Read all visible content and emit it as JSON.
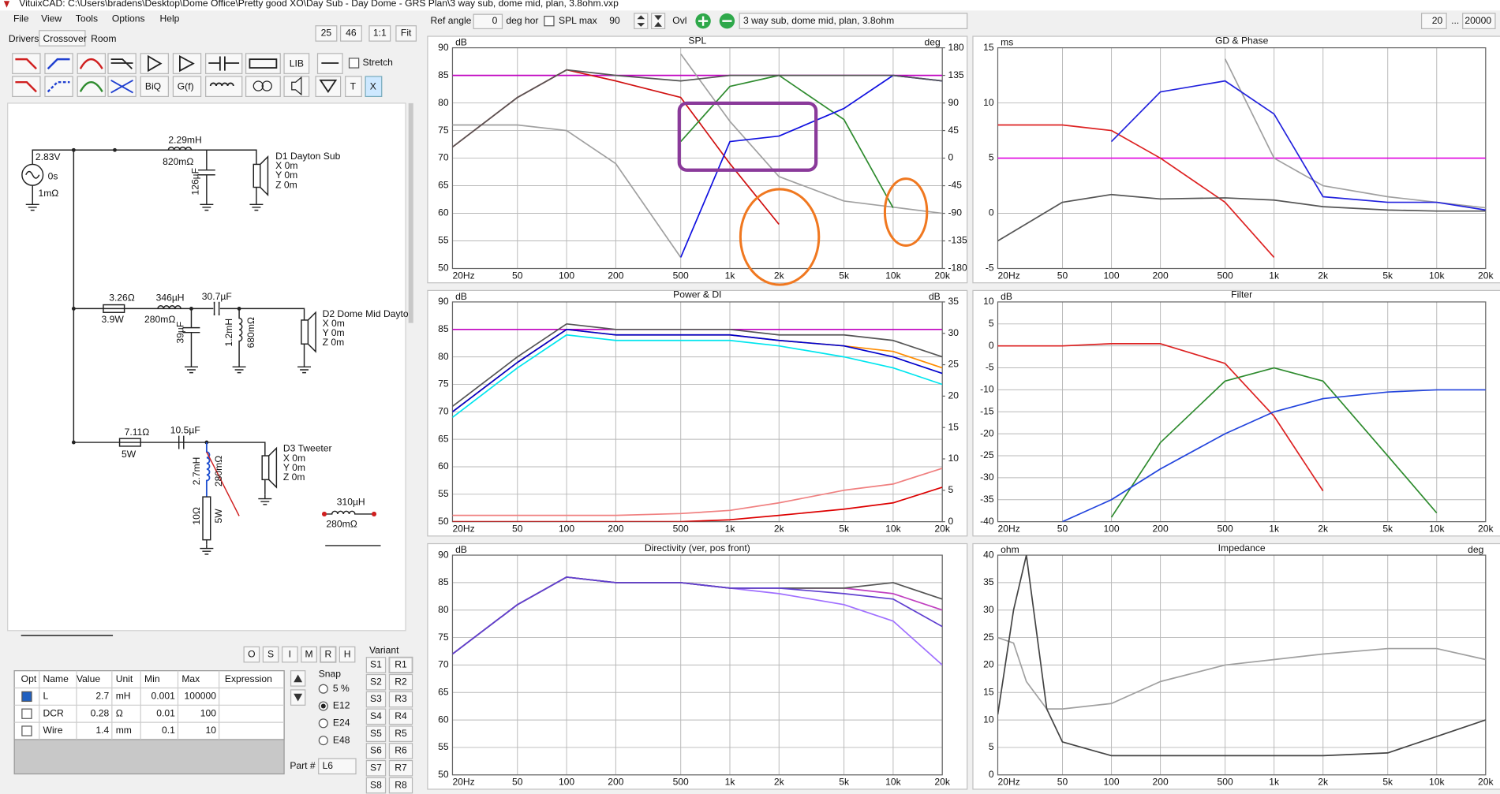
{
  "window_title": "VituixCAD: C:\\Users\\bradens\\Desktop\\Dome Office\\Pretty good XO\\Day Sub - Day Dome - GRS Plan\\3 way sub, dome mid, plan, 3.8ohm.vxp",
  "menu": [
    "File",
    "View",
    "Tools",
    "Options",
    "Help"
  ],
  "tabs": [
    "Drivers",
    "Crossover",
    "Room"
  ],
  "zoom": [
    "25",
    "46",
    "1:1",
    "Fit"
  ],
  "toolbar": {
    "ref_angle": "Ref angle",
    "angle": "0",
    "deg_hor": "deg hor",
    "spl_max": "SPL max",
    "spl_max_value": "90",
    "ovl": "Ovl",
    "description": "3 way sub, dome mid, plan, 3.8ohm",
    "f_min": "20",
    "dots": "...",
    "f_max": "20000"
  },
  "tools": [
    "LIB",
    "Stretch",
    "BiQ",
    "G(f)",
    "T",
    "X"
  ],
  "schematic": [
    "2.83V",
    "0s",
    "1mΩ",
    "2.29mH",
    "820mΩ",
    "126µF",
    "D1 Dayton Sub",
    "X 0m",
    "Y 0m",
    "Z 0m",
    "3.26Ω",
    "3.9W",
    "346µH",
    "280mΩ",
    "30.7µF",
    "39µF",
    "1.2mH",
    "680mΩ",
    "D2 Dome Mid Dayto",
    "X 0m",
    "Y 0m",
    "Z 0m",
    "7.11Ω",
    "5W",
    "10.5µF",
    "2.7mH",
    "280mΩ",
    "10Ω",
    "5W",
    "D3 Tweeter",
    "X 0m",
    "Y 0m",
    "Z 0m",
    "310µH",
    "280mΩ"
  ],
  "mode_buttons": [
    "O",
    "S",
    "I",
    "M",
    "R",
    "H"
  ],
  "parts": {
    "columns": [
      "Opt",
      "Name",
      "Value",
      "Unit",
      "Min",
      "Max",
      "Expression"
    ],
    "rows": [
      [
        "L",
        2.7,
        "mH",
        0.001,
        100000
      ],
      [
        "DCR",
        0.28,
        "Ω",
        0.01,
        100
      ],
      [
        "Wire",
        1.4,
        "mm",
        0.1,
        10
      ]
    ]
  },
  "snap": {
    "title": "Snap",
    "options": [
      "5 %",
      "E12",
      "E24",
      "E48"
    ]
  },
  "variant": {
    "title": "Variant",
    "s": [
      "S1",
      "S2",
      "S3",
      "S4",
      "S5",
      "S6",
      "S7",
      "S8"
    ],
    "r": [
      "R1",
      "R2",
      "R3",
      "R4",
      "R5",
      "R6",
      "R7",
      "R8"
    ]
  },
  "part_label": "Part #",
  "part": "L6",
  "chart_data": [
    {
      "type": "line",
      "title": "SPL",
      "y_label": "dB",
      "y2_label": "deg",
      "log_x": true,
      "grid": true,
      "x": [
        20,
        50,
        100,
        200,
        500,
        1000,
        2000,
        5000,
        10000,
        20000
      ],
      "xlim": [
        20,
        20000
      ],
      "xticks": [
        {
          "value": 20,
          "label": "20Hz"
        },
        50,
        100,
        200,
        500,
        {
          "value": 1000,
          "label": "1k"
        },
        {
          "value": 2000,
          "label": "2k"
        },
        {
          "value": 5000,
          "label": "5k"
        },
        {
          "value": 10000,
          "label": "10k"
        },
        {
          "value": 20000,
          "label": "20k"
        }
      ],
      "ylim": [
        50,
        90
      ],
      "yticks": [
        50,
        55,
        60,
        65,
        70,
        75,
        80,
        85,
        90
      ],
      "y2lim": [
        -180,
        180
      ],
      "y2ticks": [
        -180,
        -135,
        -90,
        -45,
        0,
        45,
        90,
        135,
        180
      ],
      "series": [
        {
          "color": "#c000c0",
          "values": [
            85,
            85,
            85,
            85,
            85,
            85,
            85,
            85,
            85,
            85
          ]
        },
        {
          "color": "#a0a0a0",
          "values": [
            76,
            76,
            75,
            69,
            52,
            null,
            null,
            null,
            null,
            null
          ]
        },
        {
          "color": "#a0a0a0",
          "axis": "y2",
          "values": [
            null,
            null,
            null,
            null,
            170,
            60,
            -30,
            -70,
            -80,
            -90
          ]
        },
        {
          "color": "#d01010",
          "values": [
            72,
            81,
            86,
            84,
            81,
            69,
            58,
            null,
            null,
            null
          ]
        },
        {
          "color": "#2e8b2e",
          "values": [
            null,
            null,
            null,
            null,
            73,
            83,
            85,
            77,
            61,
            null
          ]
        },
        {
          "color": "#1010e0",
          "values": [
            null,
            null,
            null,
            null,
            52,
            73,
            74,
            79,
            85,
            84
          ]
        },
        {
          "color": "#555555",
          "values": [
            72,
            81,
            86,
            85,
            84,
            85,
            85,
            85,
            85,
            84
          ]
        }
      ]
    },
    {
      "type": "line",
      "title": "GD & Phase",
      "y_label": "ms",
      "log_x": true,
      "grid": true,
      "x": [
        20,
        50,
        100,
        200,
        500,
        1000,
        2000,
        5000,
        10000,
        20000
      ],
      "xlim": [
        20,
        20000
      ],
      "xticks": [
        {
          "value": 20,
          "label": "20Hz"
        },
        50,
        100,
        200,
        500,
        {
          "value": 1000,
          "label": "1k"
        },
        {
          "value": 2000,
          "label": "2k"
        },
        {
          "value": 5000,
          "label": "5k"
        },
        {
          "value": 10000,
          "label": "10k"
        },
        {
          "value": 20000,
          "label": "20k"
        }
      ],
      "ylim": [
        -5,
        15
      ],
      "yticks": [
        -5,
        0,
        5,
        10,
        15
      ],
      "series": [
        {
          "color": "#e000e0",
          "values": [
            5,
            5,
            5,
            5,
            5,
            5,
            5,
            5,
            5,
            5
          ]
        },
        {
          "color": "#dd2222",
          "values": [
            8,
            8,
            7.5,
            5,
            1,
            -4,
            null,
            null,
            null,
            null
          ]
        },
        {
          "color": "#a0a0a0",
          "values": [
            null,
            null,
            null,
            null,
            14,
            5,
            2.5,
            1.5,
            1,
            0.5
          ]
        },
        {
          "color": "#2222dd",
          "values": [
            null,
            null,
            6.5,
            11,
            12,
            9,
            1.5,
            1,
            1,
            0.3
          ]
        },
        {
          "color": "#555555",
          "values": [
            -2.5,
            1,
            1.7,
            1.3,
            1.4,
            1.2,
            0.6,
            0.3,
            0.2,
            0.2
          ]
        }
      ]
    },
    {
      "type": "line",
      "title": "Power & DI",
      "y_label": "dB",
      "y2_label": "dB",
      "log_x": true,
      "grid": true,
      "x": [
        20,
        50,
        100,
        200,
        500,
        1000,
        2000,
        5000,
        10000,
        20000
      ],
      "xlim": [
        20,
        20000
      ],
      "xticks": [
        {
          "value": 20,
          "label": "20Hz"
        },
        50,
        100,
        200,
        500,
        {
          "value": 1000,
          "label": "1k"
        },
        {
          "value": 2000,
          "label": "2k"
        },
        {
          "value": 5000,
          "label": "5k"
        },
        {
          "value": 10000,
          "label": "10k"
        },
        {
          "value": 20000,
          "label": "20k"
        }
      ],
      "ylim": [
        50,
        90
      ],
      "yticks": [
        50,
        55,
        60,
        65,
        70,
        75,
        80,
        85,
        90
      ],
      "y2lim": [
        0,
        35
      ],
      "y2ticks": [
        0,
        5,
        10,
        15,
        20,
        25,
        30,
        35
      ],
      "series": [
        {
          "color": "#c000c0",
          "values": [
            85,
            85,
            85,
            85,
            85,
            85,
            85,
            85,
            85,
            85
          ]
        },
        {
          "color": "#00e5ee",
          "values": [
            69,
            78,
            84,
            83,
            83,
            83,
            82,
            80,
            78,
            75
          ]
        },
        {
          "color": "#ff8c00",
          "values": [
            70,
            79,
            85,
            84,
            84,
            84,
            83,
            82,
            81,
            78
          ]
        },
        {
          "color": "#0000cc",
          "values": [
            70,
            79,
            85,
            84,
            84,
            84,
            83,
            82,
            80,
            77
          ]
        },
        {
          "color": "#555555",
          "values": [
            71,
            80,
            86,
            85,
            85,
            85,
            84,
            84,
            83,
            80
          ]
        },
        {
          "color": "#f08080",
          "axis": "y2",
          "values": [
            1,
            1,
            1,
            1,
            1.3,
            1.8,
            3,
            5,
            6,
            8.5
          ]
        },
        {
          "color": "#dd0000",
          "axis": "y2",
          "values": [
            0,
            0,
            0,
            0,
            0,
            0.3,
            1,
            2,
            3,
            5.5
          ]
        }
      ]
    },
    {
      "type": "line",
      "title": "Filter",
      "y_label": "dB",
      "log_x": true,
      "grid": true,
      "x": [
        20,
        50,
        100,
        200,
        500,
        1000,
        2000,
        5000,
        10000,
        20000
      ],
      "xlim": [
        20,
        20000
      ],
      "xticks": [
        {
          "value": 20,
          "label": "20Hz"
        },
        50,
        100,
        200,
        500,
        {
          "value": 1000,
          "label": "1k"
        },
        {
          "value": 2000,
          "label": "2k"
        },
        {
          "value": 5000,
          "label": "5k"
        },
        {
          "value": 10000,
          "label": "10k"
        },
        {
          "value": 20000,
          "label": "20k"
        }
      ],
      "ylim": [
        -40,
        10
      ],
      "yticks": [
        -40,
        -35,
        -30,
        -25,
        -20,
        -15,
        -10,
        -5,
        0,
        5,
        10
      ],
      "series": [
        {
          "color": "#dd2222",
          "values": [
            0,
            0,
            0.5,
            0.5,
            -4,
            -16,
            -33,
            null,
            null,
            null
          ]
        },
        {
          "color": "#2e8b2e",
          "values": [
            null,
            null,
            -39,
            -22,
            -8,
            -5,
            -8,
            -25,
            -38,
            null
          ]
        },
        {
          "color": "#2244dd",
          "values": [
            null,
            -40,
            -35,
            -28,
            -20,
            -15,
            -12,
            -10.5,
            -10,
            -10
          ]
        }
      ]
    },
    {
      "type": "line",
      "title": "Directivity (ver, pos front)",
      "y_label": "dB",
      "log_x": true,
      "grid": true,
      "x": [
        20,
        50,
        100,
        200,
        500,
        1000,
        2000,
        5000,
        10000,
        20000
      ],
      "xlim": [
        20,
        20000
      ],
      "xticks": [
        {
          "value": 20,
          "label": "20Hz"
        },
        50,
        100,
        200,
        500,
        {
          "value": 1000,
          "label": "1k"
        },
        {
          "value": 2000,
          "label": "2k"
        },
        {
          "value": 5000,
          "label": "5k"
        },
        {
          "value": 10000,
          "label": "10k"
        },
        {
          "value": 20000,
          "label": "20k"
        }
      ],
      "ylim": [
        50,
        90
      ],
      "yticks": [
        50,
        55,
        60,
        65,
        70,
        75,
        80,
        85,
        90
      ],
      "series": [
        {
          "color": "#a070ff",
          "values": [
            72,
            81,
            86,
            85,
            85,
            84,
            83,
            81,
            78,
            70
          ]
        },
        {
          "color": "#c040c0",
          "values": [
            72,
            81,
            86,
            85,
            85,
            84,
            84,
            84,
            83,
            80
          ]
        },
        {
          "color": "#555555",
          "values": [
            72,
            81,
            86,
            85,
            85,
            84,
            84,
            84,
            85,
            82
          ]
        },
        {
          "color": "#6040d0",
          "values": [
            72,
            81,
            86,
            85,
            85,
            84,
            84,
            83,
            82,
            77
          ]
        }
      ]
    },
    {
      "type": "line",
      "title": "Impedance",
      "y_label": "ohm",
      "y2_label": "deg",
      "log_x": true,
      "grid": true,
      "x": [
        20,
        25,
        30,
        40,
        50,
        100,
        200,
        500,
        1000,
        2000,
        5000,
        10000,
        20000
      ],
      "xlim": [
        20,
        20000
      ],
      "xticks": [
        {
          "value": 20,
          "label": "20Hz"
        },
        50,
        100,
        200,
        500,
        {
          "value": 1000,
          "label": "1k"
        },
        {
          "value": 2000,
          "label": "2k"
        },
        {
          "value": 5000,
          "label": "5k"
        },
        {
          "value": 10000,
          "label": "10k"
        },
        {
          "value": 20000,
          "label": "20k"
        }
      ],
      "ylim": [
        0,
        40
      ],
      "yticks": [
        0,
        5,
        10,
        15,
        20,
        25,
        30,
        35,
        40
      ],
      "series": [
        {
          "color": "#a0a0a0",
          "values": [
            25,
            24,
            17,
            12,
            12,
            13,
            17,
            20,
            21,
            22,
            23,
            23,
            21
          ]
        },
        {
          "color": "#444444",
          "values": [
            11,
            30,
            40,
            12,
            6,
            3.5,
            3.5,
            3.5,
            3.5,
            3.5,
            4,
            7,
            10
          ]
        }
      ]
    }
  ]
}
